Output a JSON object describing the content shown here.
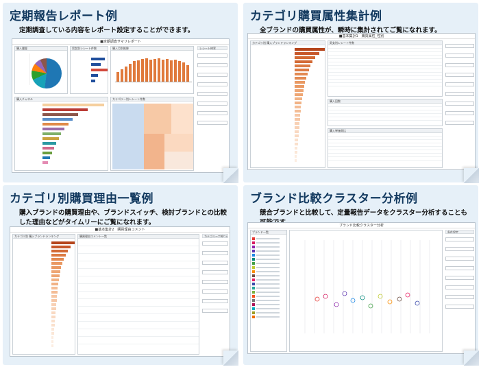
{
  "cards": [
    {
      "title": "定期報告レポート例",
      "desc": "定期調査している内容をレポート設定することができます。",
      "shot_title": "■定期調査サマリレポート"
    },
    {
      "title": "カテゴリ購買属性集計例",
      "desc": "全ブランドの購買属性が、瞬時に集計されてご覧になれます。",
      "shot_title": "■基本集計1　購買属性_性別"
    },
    {
      "title": "カテゴリ別購買理由一覧例",
      "desc": "購入ブランドの購買理由や、ブランドスイッチ、検討ブランドとの比較した理由などがタイムリーにご覧になれます。",
      "shot_title": "■基本集計2　購買理由コメント"
    },
    {
      "title": "ブランド比較クラスター分析例",
      "desc": "競合ブランドと比較して、定量報告データをクラスター分析することも可能です。",
      "shot_title": "ブランド比較クラスター分析"
    }
  ],
  "report": {
    "panel_purchase": "購入履歴",
    "panel_counts": "男女別レシート件数",
    "panel_trend": "購入月別推移",
    "panel_channel": "購入チャネル",
    "panel_category": "カテゴリー別レシート件数",
    "panel_filter": "レシート検索"
  },
  "attributes": {
    "ranking_title": "カテゴリ別 購入ブランドランキング",
    "table_title": "男女別レシート件数",
    "history_title": "購入回数",
    "price_title": "購入単価帯比"
  },
  "reasons": {
    "ranking_title": "カテゴリ別 購入ブランドランキング",
    "comment_title": "購買理由コメント一覧",
    "filter_title": "カテゴリーで絞り込み"
  },
  "cluster": {
    "legend_title": "ブランド一覧",
    "filter_title": "条件設定"
  }
}
